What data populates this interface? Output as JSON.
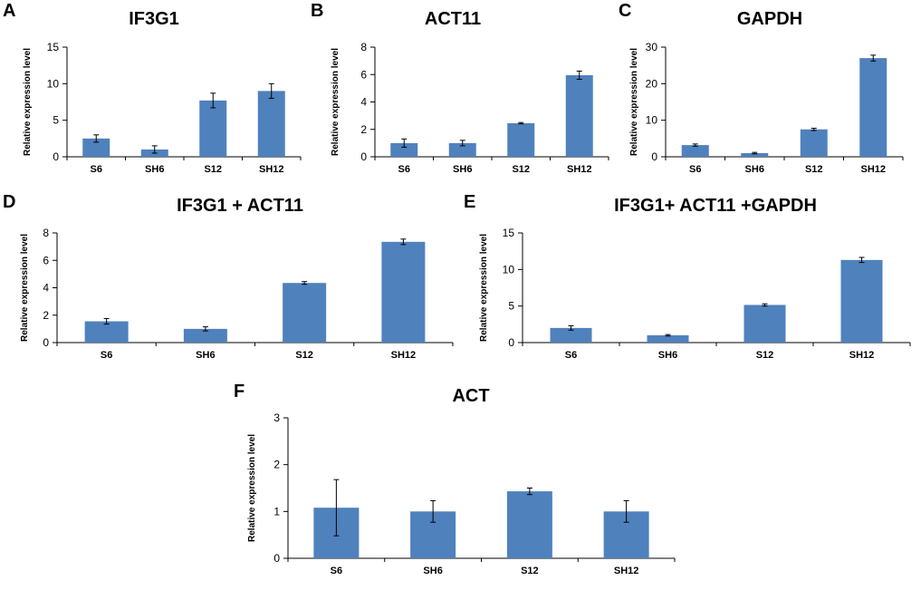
{
  "colors": {
    "bar": "#4f81bd",
    "axis": "#000000",
    "error_bar": "#000000"
  },
  "chart_data": [
    {
      "id": "A",
      "letter": "A",
      "type": "bar",
      "title": "IF3G1",
      "ylabel": "Relative expression level",
      "xlabel": "",
      "categories": [
        "S6",
        "SH6",
        "S12",
        "SH12"
      ],
      "values": [
        2.5,
        1.0,
        7.7,
        9.0
      ],
      "errors": [
        0.5,
        0.5,
        1.0,
        1.0
      ],
      "ylim": [
        0,
        15
      ],
      "yticks": [
        0,
        5,
        10,
        15
      ],
      "grid": false
    },
    {
      "id": "B",
      "letter": "B",
      "type": "bar",
      "title": "ACT11",
      "ylabel": "Relative expression level",
      "xlabel": "",
      "categories": [
        "S6",
        "SH6",
        "S12",
        "SH12"
      ],
      "values": [
        1.0,
        1.0,
        2.45,
        5.95
      ],
      "errors": [
        0.3,
        0.2,
        0.05,
        0.3
      ],
      "ylim": [
        0,
        8
      ],
      "yticks": [
        0,
        2,
        4,
        6,
        8
      ],
      "grid": false
    },
    {
      "id": "C",
      "letter": "C",
      "type": "bar",
      "title": "GAPDH",
      "ylabel": "Relative expression level",
      "xlabel": "",
      "categories": [
        "S6",
        "SH6",
        "S12",
        "SH12"
      ],
      "values": [
        3.2,
        1.0,
        7.5,
        27.0
      ],
      "errors": [
        0.3,
        0.2,
        0.3,
        0.8
      ],
      "ylim": [
        0,
        30
      ],
      "yticks": [
        0,
        10,
        20,
        30
      ],
      "grid": false
    },
    {
      "id": "D",
      "letter": "D",
      "type": "bar",
      "title": "IF3G1 + ACT11",
      "ylabel": "Relative expression level",
      "xlabel": "",
      "categories": [
        "S6",
        "SH6",
        "S12",
        "SH12"
      ],
      "values": [
        1.55,
        1.0,
        4.35,
        7.35
      ],
      "errors": [
        0.2,
        0.15,
        0.1,
        0.2
      ],
      "ylim": [
        0,
        8
      ],
      "yticks": [
        0,
        2,
        4,
        6,
        8
      ],
      "grid": false
    },
    {
      "id": "E",
      "letter": "E",
      "type": "bar",
      "title": "IF3G1+ ACT11 +GAPDH",
      "ylabel": "Relative expression level",
      "xlabel": "",
      "categories": [
        "S6",
        "SH6",
        "S12",
        "SH12"
      ],
      "values": [
        2.0,
        1.0,
        5.15,
        11.3
      ],
      "errors": [
        0.3,
        0.1,
        0.15,
        0.35
      ],
      "ylim": [
        0,
        15
      ],
      "yticks": [
        0,
        5,
        10,
        15
      ],
      "grid": false
    },
    {
      "id": "F",
      "letter": "F",
      "type": "bar",
      "title": "ACT",
      "ylabel": "Relative expression level",
      "xlabel": "",
      "categories": [
        "S6",
        "SH6",
        "S12",
        "SH12"
      ],
      "values": [
        1.08,
        1.0,
        1.43,
        1.0
      ],
      "errors": [
        0.6,
        0.23,
        0.07,
        0.23
      ],
      "ylim": [
        0,
        3
      ],
      "yticks": [
        0,
        1,
        2,
        3
      ],
      "grid": false
    }
  ]
}
